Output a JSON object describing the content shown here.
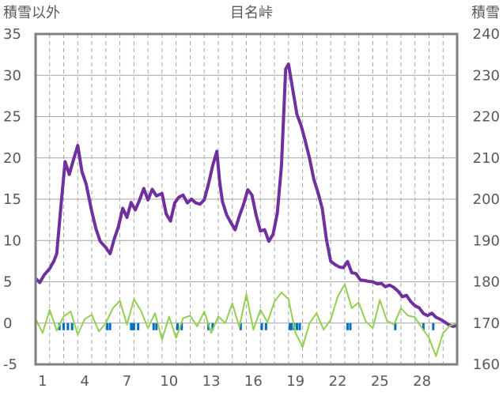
{
  "chart_data": {
    "type": "line",
    "title": "目名峠",
    "left_axis_label": "積雪以外",
    "right_axis_label": "積雪",
    "left_ylim": [
      -5,
      35
    ],
    "left_ticks": [
      "-5",
      "0",
      "5",
      "10",
      "15",
      "20",
      "25",
      "30",
      "35"
    ],
    "right_ylim": [
      160,
      240
    ],
    "right_ticks": [
      "160",
      "170",
      "180",
      "190",
      "200",
      "210",
      "220",
      "230",
      "240"
    ],
    "xlim": [
      0,
      30
    ],
    "x_ticks": [
      "1",
      "4",
      "7",
      "10",
      "13",
      "16",
      "19",
      "22",
      "25",
      "28"
    ],
    "grid": {
      "horizontal": true,
      "vertical_dashed": true
    },
    "colors": {
      "snow_depth": "#7030A0",
      "temperature": "#92D050",
      "precipitation": "#0070C0",
      "grid": "#a6a6a6",
      "frame": "#808080"
    },
    "series": [
      {
        "axis": "right",
        "color": "#7030A0",
        "x": [
          0,
          0.3,
          0.6,
          1.0,
          1.3,
          1.5,
          1.8,
          2.1,
          2.4,
          2.7,
          3.0,
          3.3,
          3.6,
          4.0,
          4.3,
          4.6,
          5.0,
          5.3,
          5.6,
          5.9,
          6.2,
          6.5,
          6.8,
          7.1,
          7.4,
          7.7,
          8.0,
          8.3,
          8.6,
          9.0,
          9.3,
          9.6,
          9.9,
          10.2,
          10.5,
          10.8,
          11.1,
          11.4,
          11.7,
          12.0,
          12.3,
          12.6,
          12.9,
          13.1,
          13.3,
          13.6,
          13.9,
          14.2,
          14.5,
          14.8,
          15.1,
          15.4,
          15.7,
          16.0,
          16.3,
          16.6,
          16.9,
          17.2,
          17.5,
          17.8,
          18.0,
          18.3,
          18.6,
          18.9,
          19.2,
          19.5,
          19.8,
          20.1,
          20.4,
          20.7,
          21.0,
          21.3,
          21.6,
          21.9,
          22.2,
          22.5,
          22.8,
          23.1,
          23.4,
          23.7,
          24.0,
          24.3,
          24.6,
          24.9,
          25.2,
          25.5,
          25.8,
          26.1,
          26.4,
          26.7,
          27.0,
          27.3,
          27.6,
          27.9,
          28.2,
          28.5,
          28.8,
          29.1,
          29.4,
          29.7,
          30.0
        ],
        "values": [
          180.8,
          179.8,
          181.6,
          183.2,
          185.0,
          186.8,
          198.2,
          209.1,
          206.0,
          209.6,
          213.0,
          206.7,
          203.6,
          197.0,
          192.8,
          189.8,
          188.3,
          186.8,
          190.4,
          193.4,
          197.8,
          195.6,
          199.2,
          197.4,
          199.8,
          202.6,
          199.8,
          202.4,
          200.8,
          201.4,
          196.4,
          194.7,
          199.1,
          200.5,
          201.0,
          199.1,
          200.0,
          199.1,
          198.8,
          199.8,
          203.6,
          208.1,
          211.6,
          204.3,
          199.4,
          196.2,
          194.3,
          192.6,
          195.9,
          198.7,
          202.3,
          201.0,
          196.1,
          192.3,
          192.6,
          189.8,
          191.5,
          196.6,
          208.1,
          231.5,
          232.7,
          226.6,
          220.5,
          217.8,
          214.0,
          209.9,
          204.8,
          201.6,
          197.8,
          190.2,
          185.0,
          184.2,
          183.6,
          183.4,
          184.9,
          182.2,
          182.0,
          180.5,
          180.3,
          180.1,
          180.0,
          179.5,
          179.6,
          178.8,
          179.2,
          178.6,
          177.7,
          176.4,
          176.7,
          175.2,
          174.2,
          173.7,
          172.3,
          171.8,
          172.4,
          171.4,
          170.9,
          170.3,
          169.6,
          169.2,
          169.4
        ]
      },
      {
        "axis": "left",
        "color": "#92D050",
        "x": [
          0,
          0.5,
          1.0,
          1.5,
          2.0,
          2.5,
          3.0,
          3.5,
          4.0,
          4.5,
          5.0,
          5.5,
          6.0,
          6.5,
          7.0,
          7.5,
          8.0,
          8.5,
          9.0,
          9.5,
          10.0,
          10.5,
          11.0,
          11.5,
          12.0,
          12.5,
          13.0,
          13.5,
          14.0,
          14.5,
          15.0,
          15.5,
          16.0,
          16.5,
          17.0,
          17.5,
          18.0,
          18.5,
          19.0,
          19.5,
          20.0,
          20.5,
          21.0,
          21.5,
          22.0,
          22.5,
          23.0,
          23.5,
          24.0,
          24.5,
          25.0,
          25.5,
          26.0,
          26.5,
          27.0,
          27.5,
          28.0,
          28.5,
          29.0,
          29.5,
          30.0
        ],
        "values": [
          0.5,
          -1.2,
          1.6,
          -0.9,
          0.8,
          1.4,
          -1.4,
          0.5,
          1.0,
          -1.0,
          0.0,
          1.8,
          2.7,
          -0.2,
          2.9,
          1.5,
          -0.6,
          1.2,
          -2.0,
          0.8,
          -1.8,
          0.6,
          0.9,
          -0.4,
          1.4,
          -1.2,
          0.8,
          0.0,
          2.4,
          -0.5,
          3.5,
          -0.8,
          1.6,
          0.1,
          2.6,
          3.7,
          2.9,
          -1.2,
          -2.9,
          0.0,
          1.2,
          -0.8,
          0.4,
          3.2,
          4.7,
          1.8,
          2.5,
          0.2,
          -0.6,
          2.8,
          0.3,
          -0.2,
          1.8,
          0.9,
          0.7,
          -0.6,
          -1.8,
          -4.0,
          -1.2,
          -0.3,
          0.0
        ]
      },
      {
        "axis": "left",
        "type": "bar",
        "color": "#0070C0",
        "x": [
          1.7,
          2.0,
          2.3,
          2.6,
          5.1,
          5.3,
          6.8,
          6.9,
          7.0,
          7.3,
          8.4,
          8.6,
          10.1,
          10.4,
          12.3,
          12.6,
          14.6,
          16.1,
          16.4,
          18.1,
          18.2,
          18.4,
          18.6,
          18.8,
          22.2,
          22.4,
          25.6,
          27.6,
          28.3
        ]
      }
    ]
  }
}
